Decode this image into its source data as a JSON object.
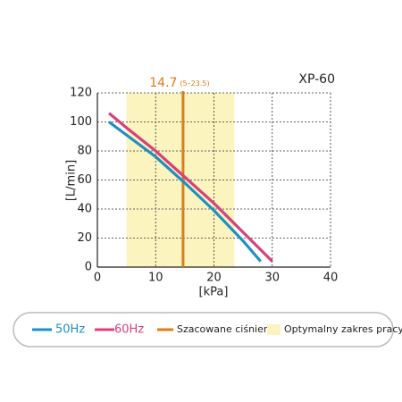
{
  "chart_data": {
    "type": "line",
    "title": "XP-60",
    "x_label": "[kPa]",
    "y_label": "[L/min]",
    "xlim": [
      0,
      40
    ],
    "xticks": [
      0,
      10,
      20,
      30,
      40
    ],
    "ylim": [
      0,
      120
    ],
    "yticks": [
      0,
      20,
      40,
      60,
      80,
      100,
      120
    ],
    "grid": true,
    "series": [
      {
        "name": "50Hz",
        "color": "#1f8fc4",
        "x": [
          2,
          5,
          10,
          15,
          20,
          25,
          28
        ],
        "values": [
          100,
          91,
          76,
          58,
          39,
          18,
          4
        ]
      },
      {
        "name": "60Hz",
        "color": "#d9407a",
        "x": [
          2,
          5,
          10,
          15,
          20,
          25,
          30
        ],
        "values": [
          106,
          96,
          80,
          62,
          44,
          24,
          4
        ]
      }
    ],
    "reference_line": {
      "name": "Szacowane ciśnienie",
      "value": 14.7,
      "color": "#e07b1a"
    },
    "range": {
      "name": "Optymalny zakres pracy",
      "from": 5,
      "to": 23.5,
      "label": "(5–23.5)",
      "color": "#fbf4bf"
    }
  }
}
